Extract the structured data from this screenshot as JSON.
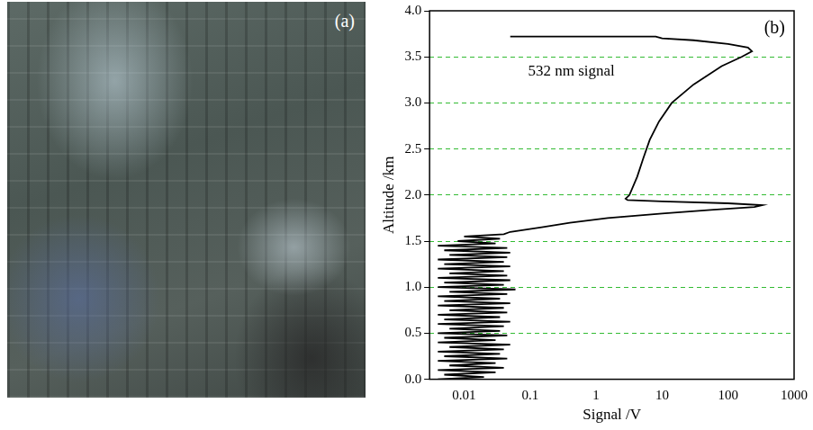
{
  "image": {
    "label": "(a)"
  },
  "chart_data": {
    "type": "line",
    "annotations": [
      "(b)",
      "532 nm signal"
    ],
    "x_label": "Signal /V",
    "y_label": "Altitude /km",
    "log": "x",
    "grid": true,
    "color": "#000000",
    "xlim": [
      0.003,
      1000
    ],
    "xticks": [
      0.01,
      0.1,
      1,
      10,
      100,
      1000
    ],
    "ylim": [
      0,
      4
    ],
    "yticks": [
      {
        "value": 0,
        "label": "0.0"
      },
      {
        "value": 0.5,
        "label": "0.5"
      },
      {
        "value": 1,
        "label": "1.0"
      },
      {
        "value": 1.5,
        "label": "1.5"
      },
      {
        "value": 2,
        "label": "2.0"
      },
      {
        "value": 2.5,
        "label": "2.5"
      },
      {
        "value": 3,
        "label": "3.0"
      },
      {
        "value": 3.5,
        "label": "3.5"
      },
      {
        "value": 4,
        "label": "4.0"
      }
    ],
    "x": [
      0.004,
      0.02,
      0.005,
      0.03,
      0.004,
      0.04,
      0.006,
      0.03,
      0.004,
      0.045,
      0.005,
      0.035,
      0.004,
      0.04,
      0.006,
      0.05,
      0.004,
      0.03,
      0.005,
      0.045,
      0.004,
      0.035,
      0.006,
      0.04,
      0.004,
      0.05,
      0.005,
      0.035,
      0.004,
      0.045,
      0.006,
      0.04,
      0.004,
      0.05,
      0.005,
      0.035,
      0.004,
      0.045,
      0.006,
      0.06,
      0.004,
      0.04,
      0.005,
      0.05,
      0.004,
      0.045,
      0.006,
      0.04,
      0.004,
      0.05,
      0.005,
      0.04,
      0.004,
      0.045,
      0.006,
      0.05,
      0.005,
      0.045,
      0.004,
      0.03,
      0.008,
      0.035,
      0.01,
      0.04,
      0.05,
      0.15,
      0.4,
      1.5,
      10,
      60,
      250,
      330,
      100,
      10,
      3,
      2.8,
      3.2,
      4.2,
      5.2,
      6.5,
      9,
      14,
      30,
      80,
      160,
      230,
      200,
      100,
      30,
      10,
      8,
      0.05
    ],
    "values": [
      0,
      0.025,
      0.05,
      0.075,
      0.1,
      0.125,
      0.15,
      0.175,
      0.2,
      0.225,
      0.25,
      0.275,
      0.3,
      0.325,
      0.35,
      0.375,
      0.4,
      0.425,
      0.45,
      0.475,
      0.5,
      0.525,
      0.55,
      0.575,
      0.6,
      0.625,
      0.65,
      0.675,
      0.7,
      0.725,
      0.75,
      0.775,
      0.8,
      0.825,
      0.85,
      0.875,
      0.9,
      0.925,
      0.95,
      0.975,
      1.0,
      1.025,
      1.05,
      1.075,
      1.1,
      1.125,
      1.15,
      1.175,
      1.2,
      1.225,
      1.25,
      1.275,
      1.3,
      1.325,
      1.35,
      1.375,
      1.4,
      1.425,
      1.45,
      1.475,
      1.5,
      1.525,
      1.55,
      1.575,
      1.6,
      1.65,
      1.7,
      1.75,
      1.8,
      1.84,
      1.87,
      1.89,
      1.91,
      1.93,
      1.945,
      1.96,
      2.0,
      2.2,
      2.4,
      2.6,
      2.8,
      3.0,
      3.2,
      3.4,
      3.5,
      3.56,
      3.6,
      3.64,
      3.68,
      3.7,
      3.72,
      3.72
    ]
  }
}
